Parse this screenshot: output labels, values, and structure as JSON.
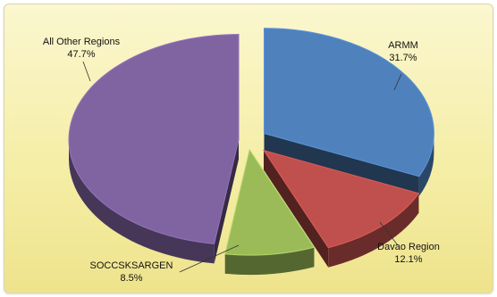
{
  "chart_data": {
    "type": "pie",
    "style": "3d-exploded",
    "title": "",
    "slices": [
      {
        "name": "ARMM",
        "value": 31.7,
        "label": "31.7%",
        "color": "#4f81bd"
      },
      {
        "name": "Davao Region",
        "value": 12.1,
        "label": "12.1%",
        "color": "#c0504d"
      },
      {
        "name": "SOCCSKSARGEN",
        "value": 8.5,
        "label": "8.5%",
        "color": "#9bbb59"
      },
      {
        "name": "All Other Regions",
        "value": 47.7,
        "label": "47.7%",
        "color": "#8064a2"
      }
    ],
    "background_color": "#f7f0b8"
  }
}
